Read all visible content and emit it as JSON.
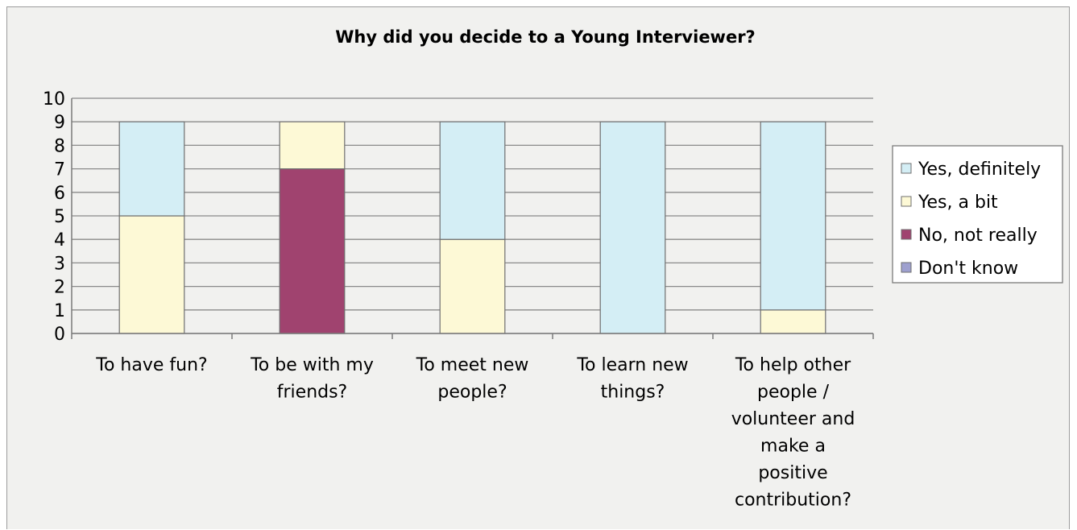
{
  "chart_data": {
    "type": "bar",
    "stacked": true,
    "title": "Why did you decide to a Young Interviewer?",
    "xlabel": "",
    "ylabel": "",
    "ylim": [
      0,
      10
    ],
    "yticks": [
      "0",
      "1",
      "2",
      "3",
      "4",
      "5",
      "6",
      "7",
      "8",
      "9",
      "10"
    ],
    "grid": true,
    "legend_position": "right",
    "categories": [
      [
        "To have fun?"
      ],
      [
        "To be with my",
        "friends?"
      ],
      [
        "To meet new",
        "people?"
      ],
      [
        "To learn new",
        "things?"
      ],
      [
        "To help other",
        "people /",
        "volunteer and",
        "make a",
        "positive",
        "contribution?"
      ]
    ],
    "series": [
      {
        "name": "No, not really",
        "color": "#a0436f",
        "values": [
          0,
          7,
          0,
          0,
          0
        ]
      },
      {
        "name": "Yes, a bit",
        "color": "#fdf9d6",
        "values": [
          5,
          2,
          4,
          0,
          1
        ]
      },
      {
        "name": "Yes, definitely",
        "color": "#d4eef5",
        "values": [
          4,
          0,
          5,
          9,
          8
        ]
      },
      {
        "name": "Don't know",
        "color": "#9ea0cf",
        "values": [
          0,
          0,
          0,
          0,
          0
        ]
      }
    ],
    "legend_order": [
      "Yes, definitely",
      "Yes, a bit",
      "No, not really",
      "Don't know"
    ]
  }
}
